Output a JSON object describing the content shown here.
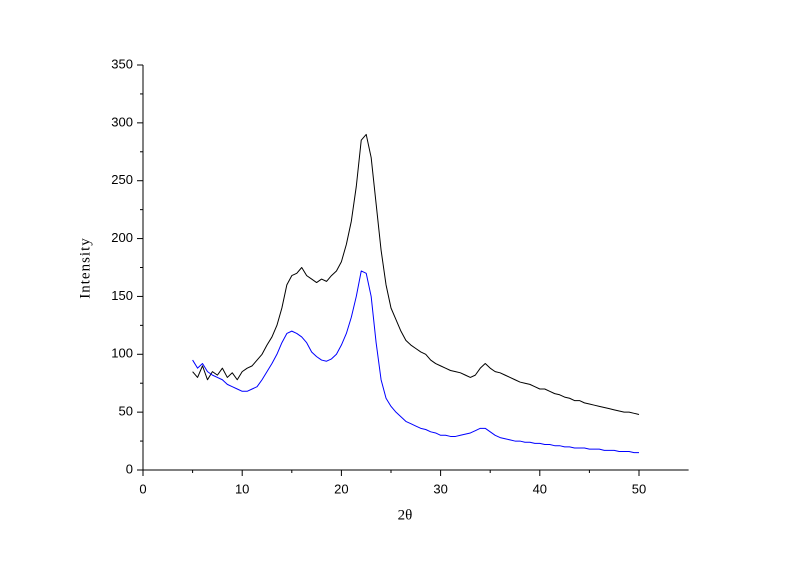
{
  "chart_data": {
    "type": "line",
    "x_label": "2θ",
    "y_label": "Intensity",
    "x": [
      5,
      5.5,
      6,
      6.5,
      7,
      7.5,
      8,
      8.5,
      9,
      9.5,
      10,
      10.5,
      11,
      11.5,
      12,
      12.5,
      13,
      13.5,
      14,
      14.5,
      15,
      15.5,
      16,
      16.5,
      17,
      17.5,
      18,
      18.5,
      19,
      19.5,
      20,
      20.5,
      21,
      21.5,
      22,
      22.5,
      23,
      23.5,
      24,
      24.5,
      25,
      25.5,
      26,
      26.5,
      27,
      27.5,
      28,
      28.5,
      29,
      29.5,
      30,
      30.5,
      31,
      31.5,
      32,
      32.5,
      33,
      33.5,
      34,
      34.5,
      35,
      35.5,
      36,
      36.5,
      37,
      37.5,
      38,
      38.5,
      39,
      39.5,
      40,
      40.5,
      41,
      41.5,
      42,
      42.5,
      43,
      43.5,
      44,
      44.5,
      45,
      45.5,
      46,
      46.5,
      47,
      47.5,
      48,
      48.5,
      49,
      49.5,
      50
    ],
    "series": [
      {
        "color": "#000000",
        "values": [
          85,
          80,
          90,
          78,
          85,
          82,
          88,
          80,
          84,
          78,
          85,
          88,
          90,
          95,
          100,
          108,
          115,
          125,
          140,
          160,
          168,
          170,
          175,
          168,
          165,
          162,
          165,
          163,
          168,
          172,
          180,
          195,
          215,
          245,
          285,
          290,
          270,
          230,
          190,
          160,
          140,
          130,
          120,
          112,
          108,
          105,
          102,
          100,
          95,
          92,
          90,
          88,
          86,
          85,
          84,
          82,
          80,
          82,
          88,
          92,
          88,
          85,
          84,
          82,
          80,
          78,
          76,
          75,
          74,
          72,
          70,
          70,
          68,
          66,
          65,
          63,
          62,
          60,
          60,
          58,
          57,
          56,
          55,
          54,
          53,
          52,
          51,
          50,
          50,
          49,
          48
        ]
      },
      {
        "color": "#0000ff",
        "values": [
          95,
          88,
          92,
          85,
          82,
          80,
          78,
          74,
          72,
          70,
          68,
          68,
          70,
          72,
          78,
          85,
          92,
          100,
          110,
          118,
          120,
          118,
          115,
          110,
          102,
          98,
          95,
          94,
          96,
          100,
          108,
          118,
          132,
          150,
          172,
          170,
          150,
          110,
          78,
          62,
          55,
          50,
          46,
          42,
          40,
          38,
          36,
          35,
          33,
          32,
          30,
          30,
          29,
          29,
          30,
          31,
          32,
          34,
          36,
          36,
          33,
          30,
          28,
          27,
          26,
          25,
          25,
          24,
          24,
          23,
          23,
          22,
          22,
          21,
          21,
          20,
          20,
          19,
          19,
          19,
          18,
          18,
          18,
          17,
          17,
          17,
          16,
          16,
          16,
          15,
          15
        ]
      }
    ],
    "xlim": [
      0,
      55
    ],
    "xticks": [
      0,
      10,
      20,
      30,
      40,
      50
    ],
    "ylim": [
      0,
      350
    ],
    "yticks": [
      0,
      50,
      100,
      150,
      200,
      250,
      300,
      350
    ]
  }
}
